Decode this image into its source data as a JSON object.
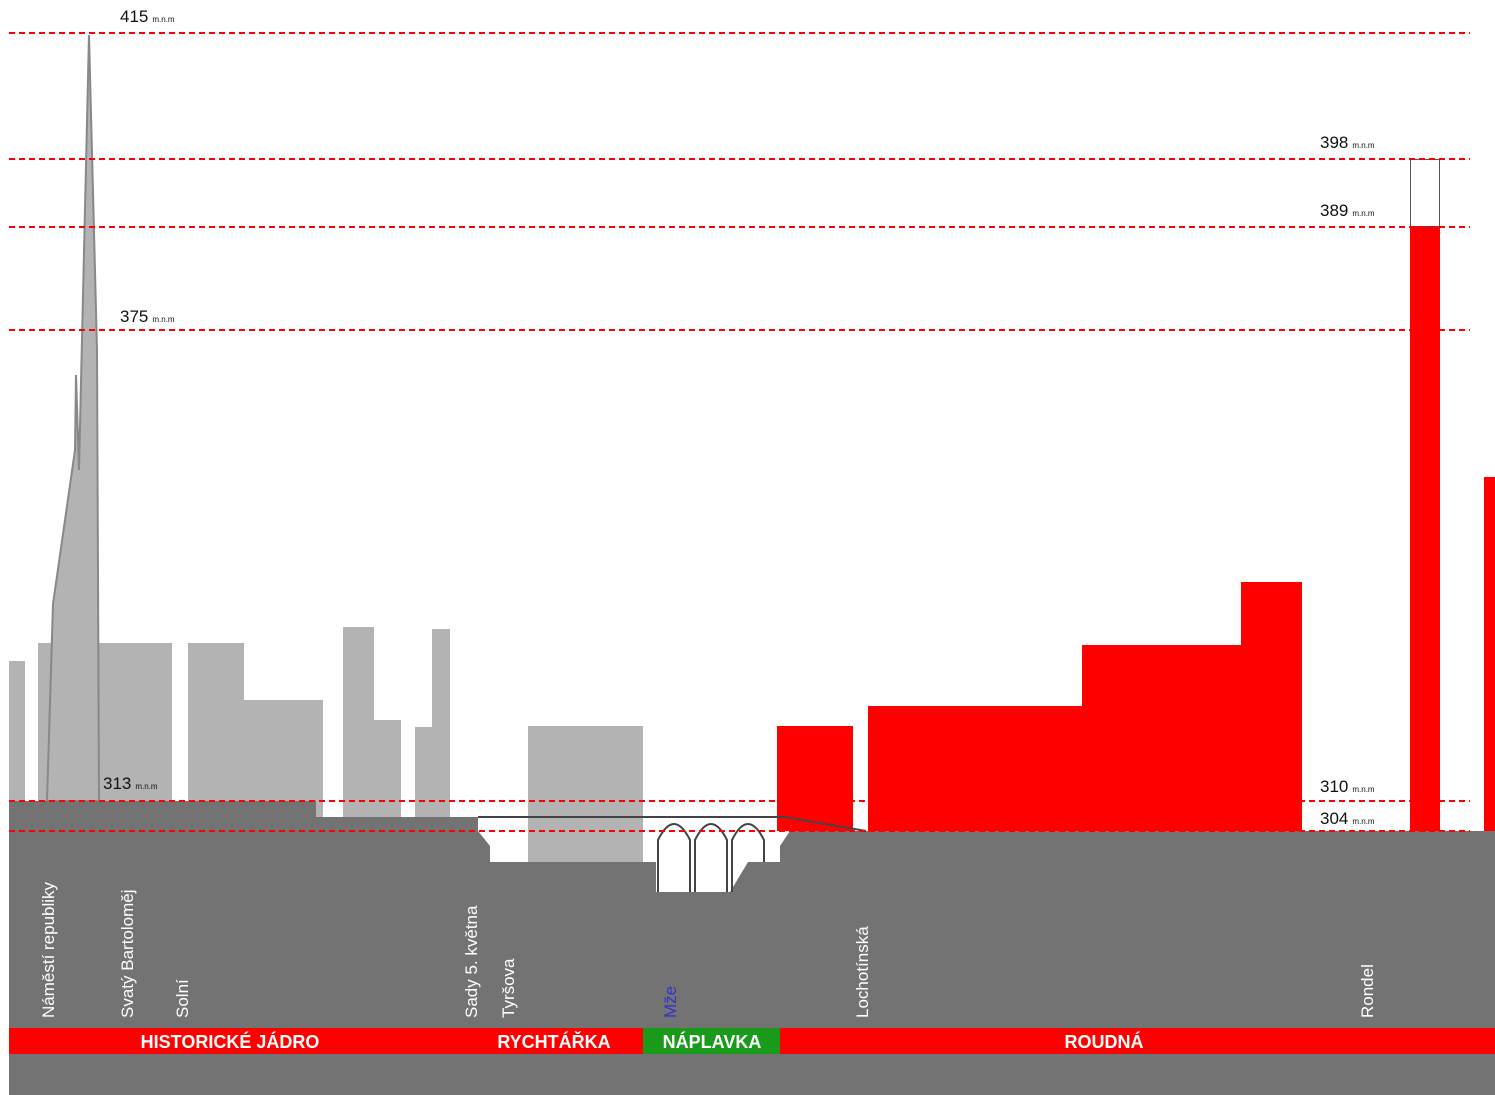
{
  "levels": [
    {
      "value": "415",
      "unit": "m.n.m"
    },
    {
      "value": "398",
      "unit": "m.n.m"
    },
    {
      "value": "389",
      "unit": "m.n.m"
    },
    {
      "value": "375",
      "unit": "m.n.m"
    },
    {
      "value": "313",
      "unit": "m.n.m"
    },
    {
      "value": "310",
      "unit": "m.n.m"
    },
    {
      "value": "304",
      "unit": "m.n.m"
    }
  ],
  "streets": [
    "Náměstí republiky",
    "Svatý Bartoloměj",
    "Solní",
    "Sady 5. května",
    "Tyršova",
    "Mže",
    "Lochotínská",
    "Rondel"
  ],
  "districts": [
    "HISTORICKÉ JÁDRO",
    "RYCHTÁŘKA",
    "NÁPLAVKA",
    "ROUDNÁ"
  ]
}
